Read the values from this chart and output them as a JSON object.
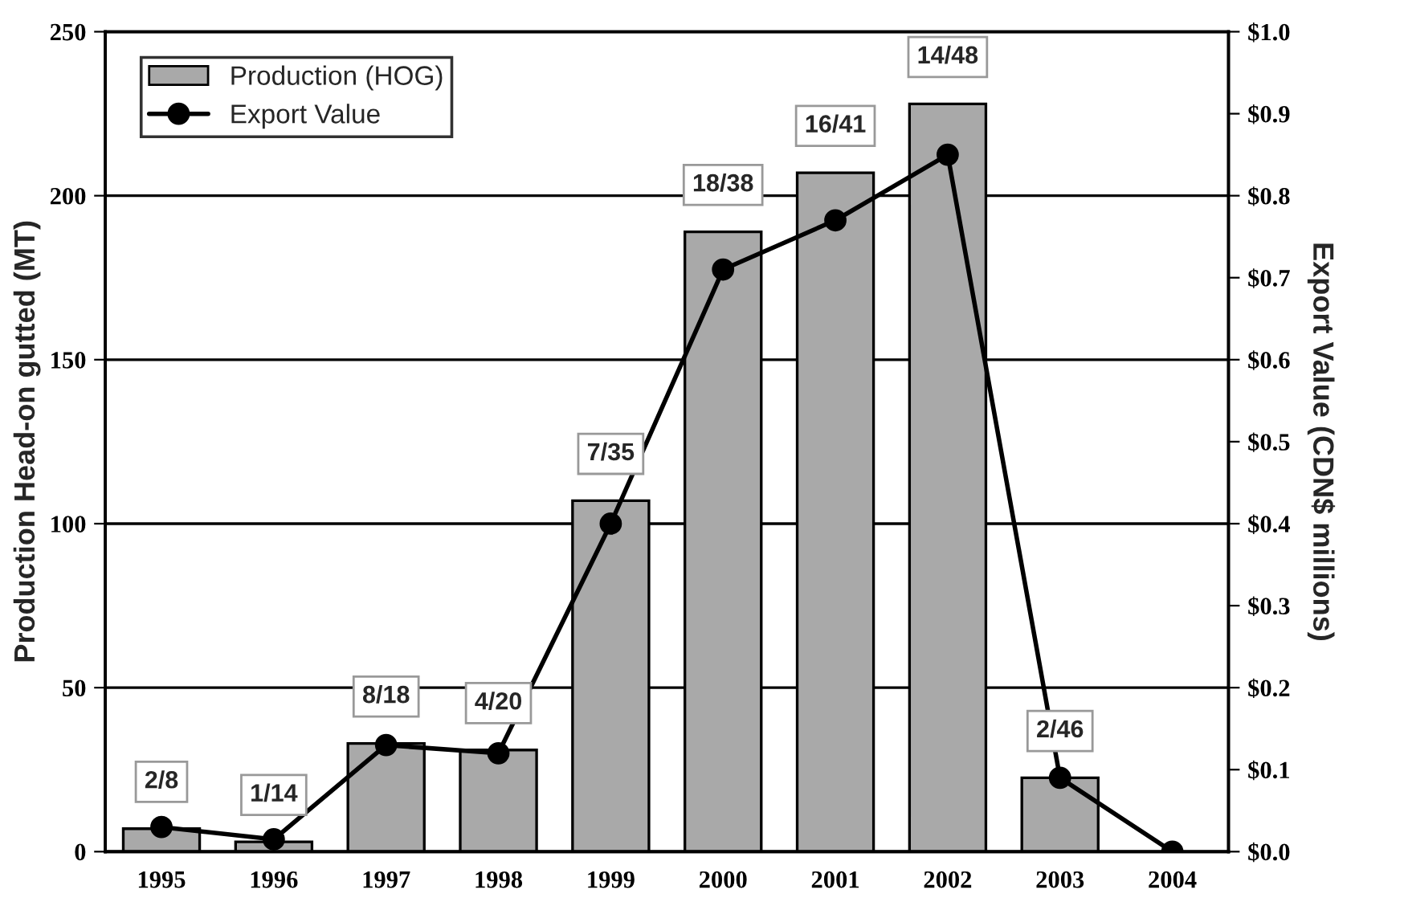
{
  "chart_data": {
    "type": "bar",
    "categories": [
      "1995",
      "1996",
      "1997",
      "1998",
      "1999",
      "2000",
      "2001",
      "2002",
      "2003",
      "2004"
    ],
    "series": [
      {
        "name": "Production (HOG)",
        "color": "#a9a9a9",
        "values": [
          7,
          3,
          33,
          31,
          107,
          189,
          207,
          228,
          22.5,
          null
        ]
      },
      {
        "name": "Export Value",
        "type": "line",
        "axis": "y2",
        "color": "#000000",
        "marker": "circle",
        "values": [
          0.03,
          0.015,
          0.13,
          0.12,
          0.4,
          0.71,
          0.77,
          0.85,
          0.09,
          0.0
        ]
      }
    ],
    "ylabel": "Production Head-on gutted (MT)",
    "y2label": "Export Value (CDN$ millions)",
    "ylim": [
      0,
      250
    ],
    "yticks": [
      0,
      50,
      100,
      150,
      200,
      250
    ],
    "y2lim": [
      0,
      1.0
    ],
    "y2ticks": [
      {
        "value": 0,
        "label": "$0.0"
      },
      {
        "value": 0.1,
        "label": "$0.1"
      },
      {
        "value": 0.2,
        "label": "$0.2"
      },
      {
        "value": 0.3,
        "label": "$0.3"
      },
      {
        "value": 0.4,
        "label": "$0.4"
      },
      {
        "value": 0.5,
        "label": "$0.5"
      },
      {
        "value": 0.6,
        "label": "$0.6"
      },
      {
        "value": 0.7,
        "label": "$0.7"
      },
      {
        "value": 0.8,
        "label": "$0.8"
      },
      {
        "value": 0.9,
        "label": "$0.9"
      },
      {
        "value": 1.0,
        "label": "$1.0"
      }
    ],
    "annotations": [
      {
        "text": "2/8",
        "x": "1995",
        "y": 7
      },
      {
        "text": "1/14",
        "x": "1996",
        "y": 3
      },
      {
        "text": "8/18",
        "x": "1997",
        "y": 33
      },
      {
        "text": "4/20",
        "x": "1998",
        "y": 31
      },
      {
        "text": "7/35",
        "x": "1999",
        "y": 107
      },
      {
        "text": "18/38",
        "x": "2000",
        "y": 189
      },
      {
        "text": "16/41",
        "x": "2001",
        "y": 207
      },
      {
        "text": "14/48",
        "x": "2002",
        "y": 228
      },
      {
        "text": "2/46",
        "x": "2003",
        "y": 22.5
      }
    ],
    "grid": "y",
    "legend": "top left"
  }
}
